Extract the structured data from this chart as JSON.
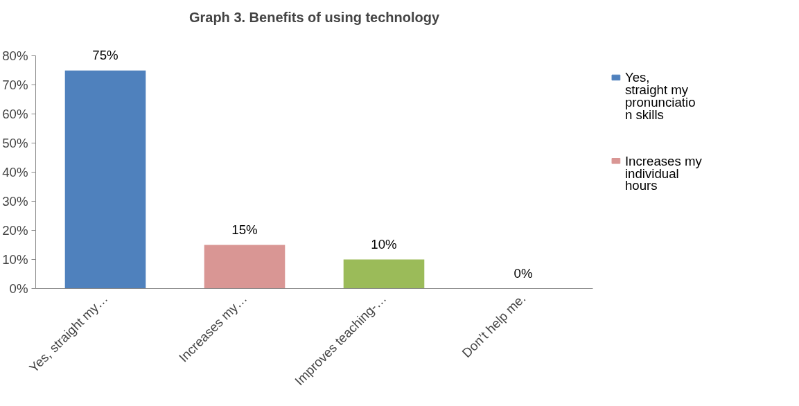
{
  "chart_data": {
    "type": "bar",
    "title": "Graph 3. Benefits of using technology",
    "categories": [
      "Yes, straight my…",
      "Increases my…",
      "Improves teaching-…",
      "Don’t help me."
    ],
    "series": [
      {
        "name": "Yes, straight my pronunciation skills",
        "color": "#4f81bd",
        "values": [
          75,
          null,
          null,
          null
        ],
        "value_labels": [
          "75%",
          null,
          null,
          null
        ]
      },
      {
        "name": "Increases my individual hours",
        "color": "#d99694",
        "values": [
          null,
          15,
          null,
          null
        ],
        "value_labels": [
          null,
          "15%",
          null,
          null
        ]
      },
      {
        "color": "#9bbb59",
        "values": [
          null,
          null,
          10,
          null
        ],
        "value_labels": [
          null,
          null,
          "10%",
          null
        ]
      },
      {
        "color": "#8064a2",
        "values": [
          null,
          null,
          null,
          0
        ],
        "value_labels": [
          null,
          null,
          null,
          "0%"
        ]
      }
    ],
    "ylim": [
      0,
      80
    ],
    "yticks": [
      {
        "value": 0,
        "label": "0%"
      },
      {
        "value": 10,
        "label": "10%"
      },
      {
        "value": 20,
        "label": "20%"
      },
      {
        "value": 30,
        "label": "30%"
      },
      {
        "value": 40,
        "label": "40%"
      },
      {
        "value": 50,
        "label": "50%"
      },
      {
        "value": 60,
        "label": "60%"
      },
      {
        "value": 70,
        "label": "70%"
      },
      {
        "value": 80,
        "label": "80%"
      }
    ],
    "grid": false,
    "legend": "right"
  }
}
